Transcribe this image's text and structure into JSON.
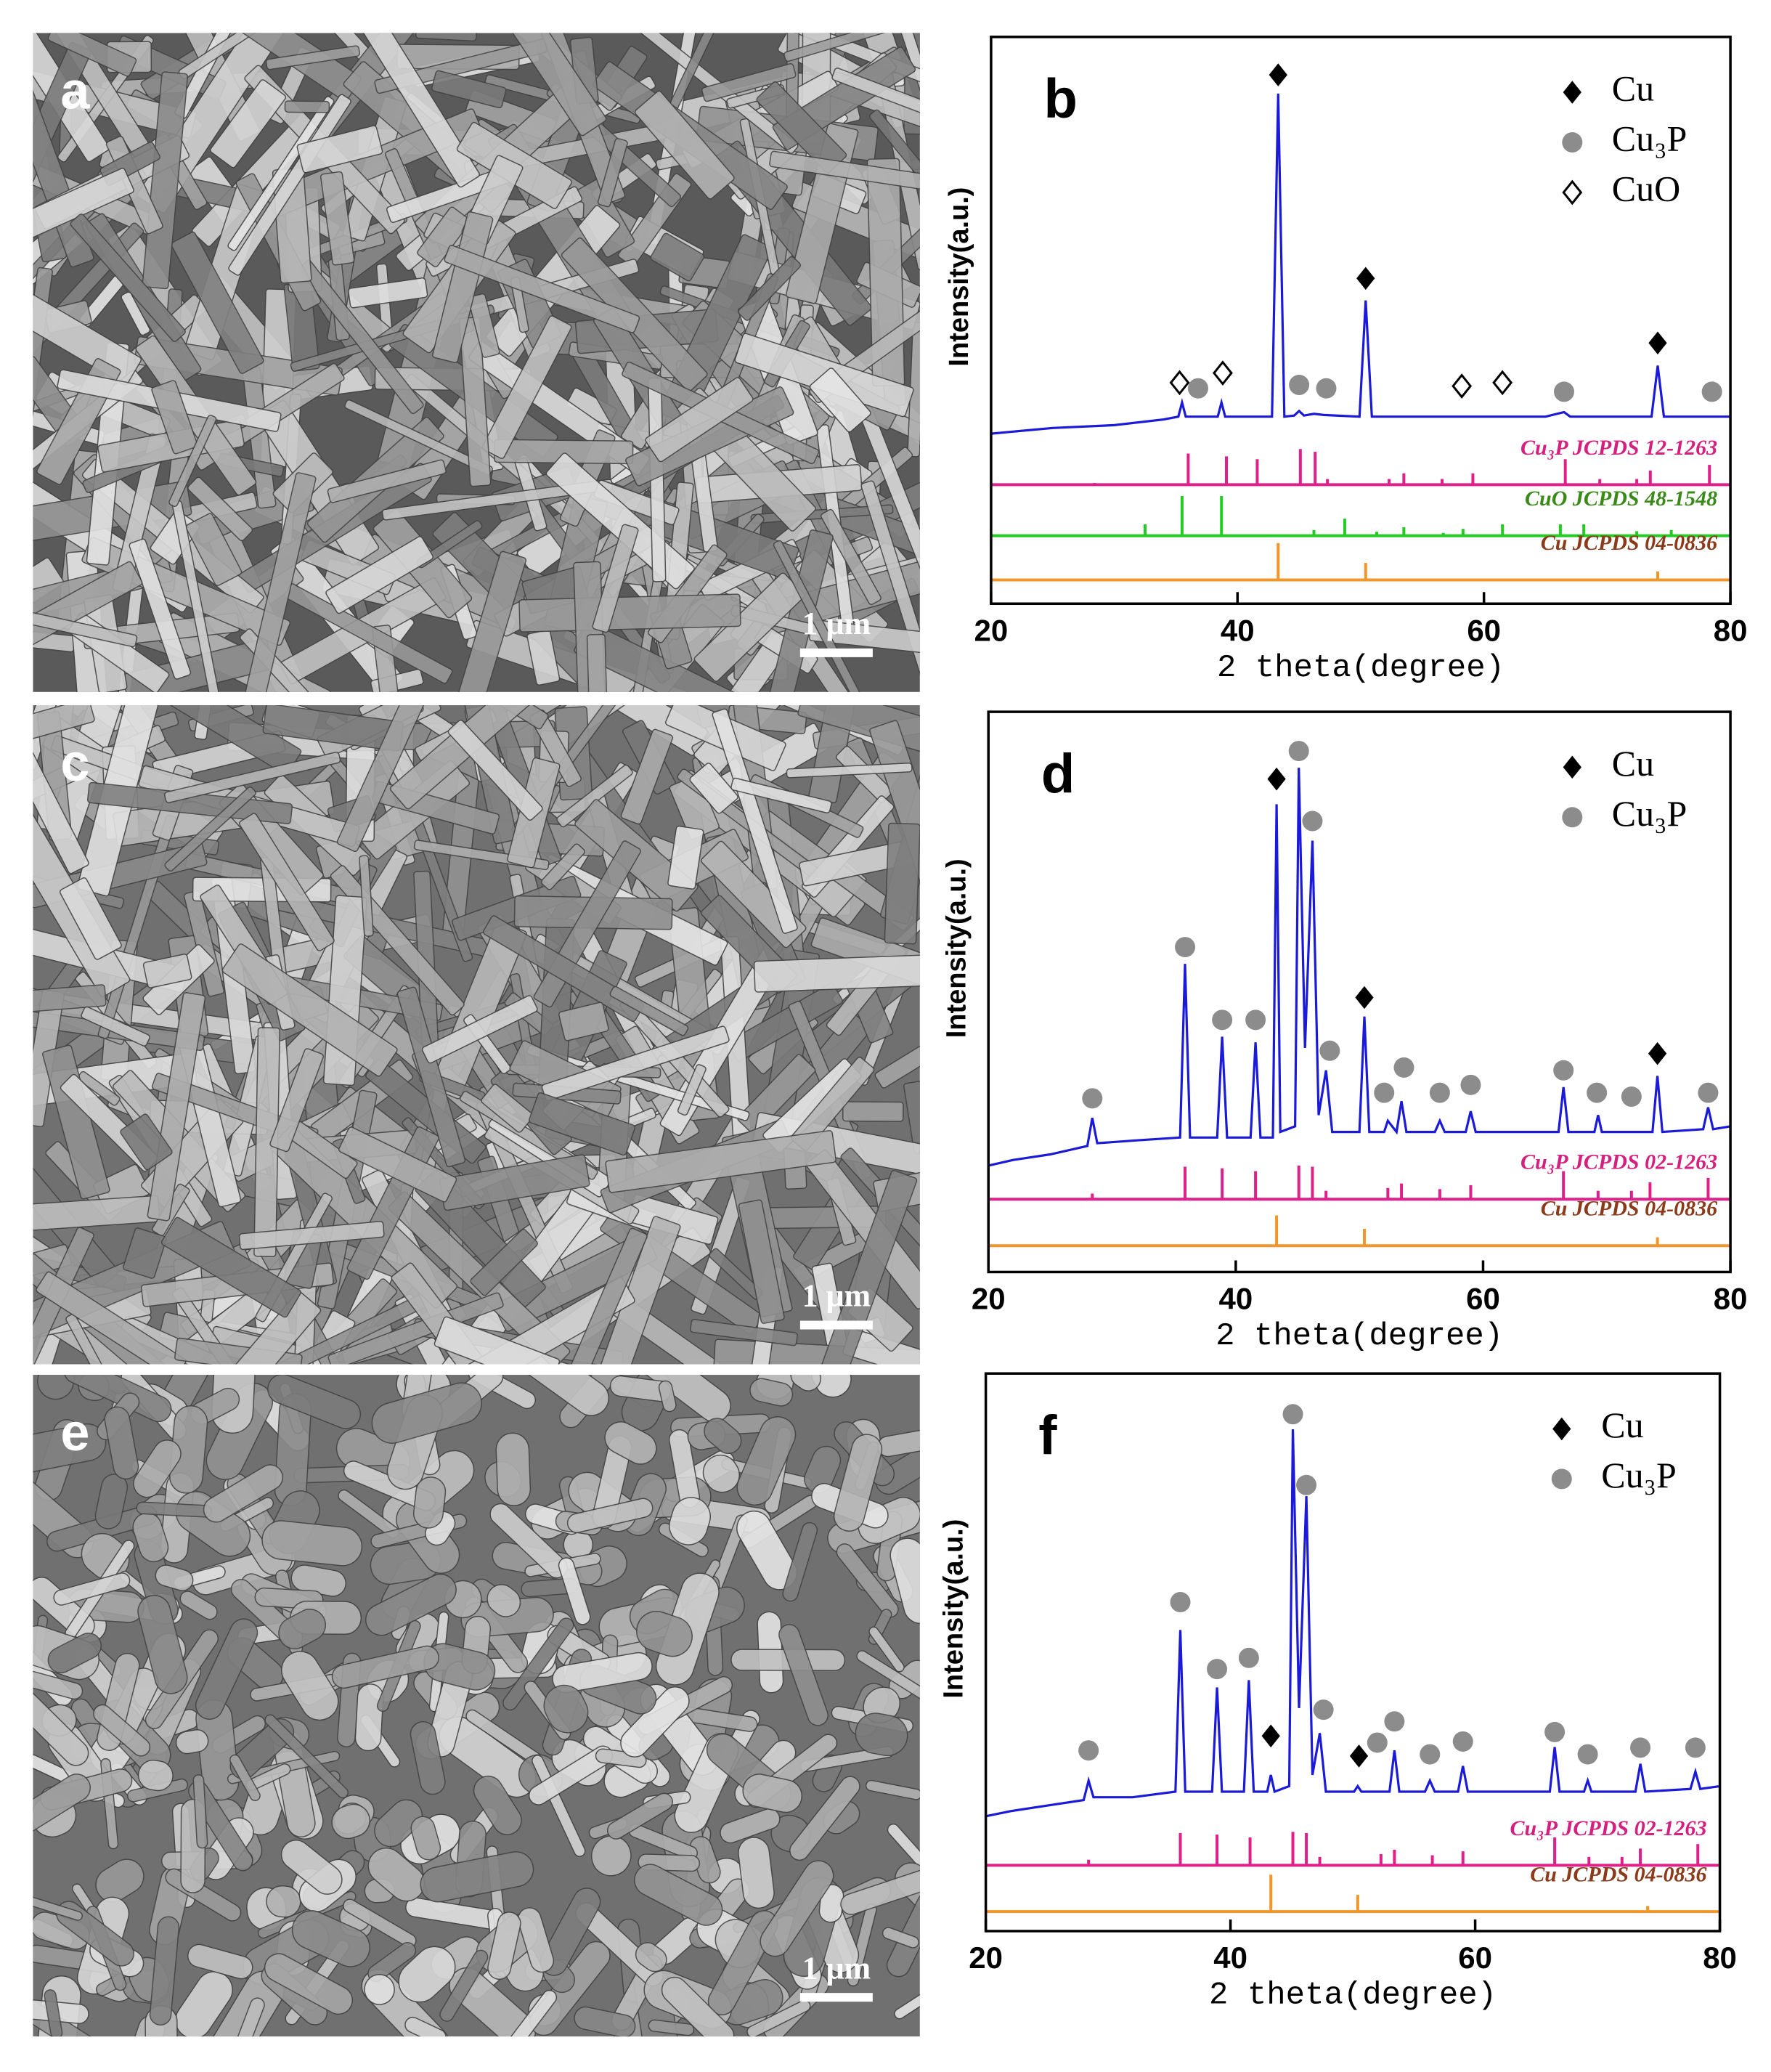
{
  "images": [
    {
      "label": "a",
      "scale_bar": "1 μm"
    },
    {
      "label": "c",
      "scale_bar": "1 μm"
    },
    {
      "label": "e",
      "scale_bar": "1 μm"
    }
  ],
  "chart_data": [
    {
      "type": "line",
      "panel": "b",
      "xlabel": "2 theta(degree)",
      "ylabel": "Intensity(a.u.)",
      "xlim": [
        20,
        80
      ],
      "xticks": [
        20,
        40,
        60,
        80
      ],
      "ylim": [
        0,
        100
      ],
      "series": [
        {
          "color": "#1a1ad8",
          "x": [
            20,
            25,
            30,
            34,
            35.2,
            35.5,
            35.8,
            36.5,
            38.4,
            38.7,
            39.0,
            42.8,
            43.3,
            43.8,
            44.6,
            45,
            45.4,
            46.2,
            47,
            49.9,
            50.4,
            50.9,
            55,
            60,
            65,
            66.5,
            67,
            73.6,
            74.1,
            74.6,
            78,
            80
          ],
          "values": [
            30,
            31,
            31.5,
            32.5,
            33,
            35.5,
            33,
            33,
            33,
            35.5,
            33,
            33,
            90,
            33,
            33.2,
            34,
            33.2,
            33.5,
            33.3,
            33,
            53.5,
            33,
            33,
            33,
            33,
            33.8,
            33,
            33,
            42,
            33,
            33,
            33
          ]
        }
      ],
      "phases": [
        {
          "name": "Cu",
          "symbol": "diamond"
        },
        {
          "name": "Cu₃P",
          "symbol": "circle"
        },
        {
          "name": "CuO",
          "symbol": "open-diamond"
        }
      ],
      "markers": [
        {
          "phase": 0,
          "x": 43.3,
          "y": 93.3
        },
        {
          "phase": 0,
          "x": 50.4,
          "y": 57.4
        },
        {
          "phase": 0,
          "x": 74.1,
          "y": 46
        },
        {
          "phase": 1,
          "x": 36.8,
          "y": 38
        },
        {
          "phase": 1,
          "x": 45,
          "y": 38.6
        },
        {
          "phase": 1,
          "x": 47.2,
          "y": 38
        },
        {
          "phase": 1,
          "x": 66.5,
          "y": 37.4
        },
        {
          "phase": 1,
          "x": 78.5,
          "y": 37.4
        },
        {
          "phase": 2,
          "x": 35.3,
          "y": 39
        },
        {
          "phase": 2,
          "x": 38.8,
          "y": 40.7
        },
        {
          "phase": 2,
          "x": 58.2,
          "y": 38.4
        },
        {
          "phase": 2,
          "x": 61.5,
          "y": 39
        }
      ],
      "references": [
        {
          "name": "Cu₃P JCPDS 12-1263",
          "color": "#e0208a",
          "label_color": "#d4207e",
          "baseline": 21,
          "x": [
            28.4,
            36.0,
            39.1,
            41.6,
            45.1,
            46.3,
            47.3,
            52.3,
            53.5,
            56.6,
            59.1,
            66.6,
            69.4,
            72.4,
            73.5,
            78.3
          ],
          "values": [
            0.3,
            5.5,
            5,
            4.5,
            6.3,
            5.8,
            1,
            1,
            2,
            1,
            2,
            4.5,
            1,
            1,
            2.5,
            3.5
          ]
        },
        {
          "name": "CuO JCPDS 48-1548",
          "color": "#22cc22",
          "label_color": "#3a8a1a",
          "baseline": 12,
          "x": [
            32.5,
            35.5,
            38.7,
            46.2,
            48.7,
            51.3,
            53.5,
            56.7,
            58.3,
            61.5,
            66.2,
            68.1,
            72.4,
            75.2
          ],
          "values": [
            2,
            7,
            7,
            1,
            3,
            0.7,
            1.5,
            0.5,
            1.2,
            2,
            2,
            2,
            0.8,
            1
          ]
        },
        {
          "name": "Cu JCPDS 04-0836",
          "color": "#f0962a",
          "label_color": "#8b3a1a",
          "baseline": 4.2,
          "x": [
            43.3,
            50.4,
            74.1
          ],
          "values": [
            6.5,
            3,
            1.5
          ]
        }
      ]
    },
    {
      "type": "line",
      "panel": "d",
      "xlabel": "2 theta(degree)",
      "ylabel": "Intensity(a.u.)",
      "xlim": [
        20,
        80
      ],
      "xticks": [
        20,
        40,
        60,
        80
      ],
      "ylim": [
        0,
        100
      ],
      "series": [
        {
          "color": "#1a1ad8",
          "x": [
            20,
            22,
            25,
            28,
            28.4,
            28.8,
            32,
            35.5,
            35.9,
            36.3,
            38.5,
            38.9,
            39.3,
            41.2,
            41.6,
            42,
            43,
            43.3,
            43.6,
            44.8,
            45.1,
            45.6,
            46.2,
            46.7,
            47.3,
            47.8,
            50,
            50.4,
            50.8,
            52,
            52.3,
            53,
            53.4,
            53.8,
            56.1,
            56.5,
            56.9,
            58.6,
            59,
            59.4,
            66.1,
            66.5,
            66.9,
            69,
            69.3,
            69.6,
            73.7,
            74.1,
            74.5,
            77.8,
            78.2,
            78.6,
            80
          ],
          "values": [
            19,
            20,
            21,
            22.5,
            27.5,
            23,
            23.5,
            24,
            55,
            24,
            24,
            42,
            24,
            24,
            41,
            24,
            24,
            83.5,
            25,
            26,
            90,
            40,
            77,
            28,
            36,
            25,
            25,
            45.6,
            25,
            25,
            27,
            25,
            30.5,
            25,
            25,
            27,
            25,
            25,
            28.7,
            25,
            25,
            33,
            25,
            25,
            28,
            25,
            25,
            35,
            25,
            25.5,
            29.4,
            25.5,
            26
          ]
        }
      ],
      "phases": [
        {
          "name": "Cu",
          "symbol": "diamond"
        },
        {
          "name": "Cu₃P",
          "symbol": "circle"
        }
      ],
      "markers": [
        {
          "phase": 0,
          "x": 43.3,
          "y": 88
        },
        {
          "phase": 0,
          "x": 50.4,
          "y": 49
        },
        {
          "phase": 0,
          "x": 74.1,
          "y": 39
        },
        {
          "phase": 1,
          "x": 28.4,
          "y": 31
        },
        {
          "phase": 1,
          "x": 35.9,
          "y": 58
        },
        {
          "phase": 1,
          "x": 38.9,
          "y": 45
        },
        {
          "phase": 1,
          "x": 41.6,
          "y": 45
        },
        {
          "phase": 1,
          "x": 45.1,
          "y": 93
        },
        {
          "phase": 1,
          "x": 46.2,
          "y": 80.5
        },
        {
          "phase": 1,
          "x": 47.6,
          "y": 39.5
        },
        {
          "phase": 1,
          "x": 52,
          "y": 32
        },
        {
          "phase": 1,
          "x": 53.6,
          "y": 36.5
        },
        {
          "phase": 1,
          "x": 56.5,
          "y": 32
        },
        {
          "phase": 1,
          "x": 59,
          "y": 33.4
        },
        {
          "phase": 1,
          "x": 66.5,
          "y": 36
        },
        {
          "phase": 1,
          "x": 69.2,
          "y": 32
        },
        {
          "phase": 1,
          "x": 72,
          "y": 31.3
        },
        {
          "phase": 1,
          "x": 78.2,
          "y": 32
        }
      ],
      "references": [
        {
          "name": "Cu₃P JCPDS 02-1263",
          "color": "#e0208a",
          "label_color": "#d4207e",
          "baseline": 13,
          "x": [
            28.4,
            35.9,
            38.9,
            41.6,
            45.1,
            46.2,
            47.3,
            52.3,
            53.4,
            56.5,
            59.0,
            66.5,
            69.3,
            72.0,
            73.5,
            78.2
          ],
          "values": [
            1,
            5.8,
            5.5,
            5,
            6,
            5.8,
            1.5,
            2,
            2.8,
            1.8,
            2.5,
            5,
            1.5,
            1.5,
            3,
            3.8
          ]
        },
        {
          "name": "Cu JCPDS 04-0836",
          "color": "#f0962a",
          "label_color": "#8b3a1a",
          "baseline": 4.7,
          "x": [
            43.3,
            50.4,
            74.1
          ],
          "values": [
            5.4,
            3,
            1.5
          ]
        }
      ]
    },
    {
      "type": "line",
      "panel": "f",
      "xlabel": "2 theta(degree)",
      "ylabel": "Intensity(a.u.)",
      "xlim": [
        20,
        80
      ],
      "xticks": [
        20,
        40,
        60,
        80
      ],
      "ylim": [
        0,
        100
      ],
      "series": [
        {
          "color": "#1a1ad8",
          "x": [
            20,
            22,
            25,
            28,
            28.4,
            28.8,
            32,
            35.5,
            35.9,
            36.3,
            38.5,
            38.9,
            39.3,
            41.1,
            41.5,
            41.9,
            43,
            43.3,
            43.6,
            44.8,
            45.1,
            45.6,
            46.2,
            46.7,
            47.3,
            47.8,
            50.1,
            50.4,
            50.7,
            53,
            53.4,
            53.8,
            55.9,
            56.3,
            56.7,
            58.6,
            59,
            59.4,
            66.1,
            66.5,
            66.9,
            68.9,
            69.2,
            69.5,
            73.1,
            73.5,
            73.9,
            77.6,
            78,
            78.4,
            80
          ],
          "values": [
            20.6,
            21.5,
            22.5,
            23.5,
            27,
            24,
            24,
            25,
            54,
            25,
            25,
            43.7,
            25,
            25,
            45,
            25,
            25,
            28,
            25,
            26,
            90,
            40,
            78,
            28,
            35.5,
            25,
            25,
            26,
            25,
            25,
            32.4,
            25,
            25,
            27,
            25,
            25,
            29.6,
            25,
            25,
            33,
            25,
            25,
            27,
            25,
            25,
            30,
            25,
            25.5,
            28.6,
            25.5,
            26
          ]
        }
      ],
      "phases": [
        {
          "name": "Cu",
          "symbol": "diamond"
        },
        {
          "name": "Cu₃P",
          "symbol": "circle"
        }
      ],
      "markers": [
        {
          "phase": 1,
          "x": 28.4,
          "y": 32.4
        },
        {
          "phase": 1,
          "x": 35.9,
          "y": 59
        },
        {
          "phase": 1,
          "x": 38.9,
          "y": 47
        },
        {
          "phase": 1,
          "x": 41.5,
          "y": 49
        },
        {
          "phase": 1,
          "x": 45.1,
          "y": 92.7
        },
        {
          "phase": 1,
          "x": 46.2,
          "y": 80
        },
        {
          "phase": 1,
          "x": 47.6,
          "y": 39.7
        },
        {
          "phase": 1,
          "x": 52,
          "y": 33.8
        },
        {
          "phase": 1,
          "x": 53.4,
          "y": 37.6
        },
        {
          "phase": 1,
          "x": 56.3,
          "y": 31.7
        },
        {
          "phase": 1,
          "x": 59,
          "y": 34
        },
        {
          "phase": 1,
          "x": 66.5,
          "y": 35.7
        },
        {
          "phase": 1,
          "x": 69.2,
          "y": 31.7
        },
        {
          "phase": 1,
          "x": 73.5,
          "y": 32.9
        },
        {
          "phase": 1,
          "x": 78,
          "y": 32.9
        },
        {
          "phase": 0,
          "x": 43.3,
          "y": 35
        },
        {
          "phase": 0,
          "x": 50.5,
          "y": 31.4
        }
      ],
      "references": [
        {
          "name": "Cu₃P JCPDS 02-1263",
          "color": "#e0208a",
          "label_color": "#d4207e",
          "baseline": 11.8,
          "x": [
            28.4,
            35.9,
            38.9,
            41.6,
            45.1,
            46.2,
            47.3,
            52.3,
            53.4,
            56.5,
            59.0,
            66.5,
            69.3,
            72.0,
            73.5,
            78.2
          ],
          "values": [
            1,
            5.8,
            5.5,
            5,
            6,
            5.8,
            1.5,
            2,
            2.8,
            1.8,
            2.5,
            5,
            1.5,
            1.5,
            3,
            3.8
          ]
        },
        {
          "name": "Cu JCPDS 04-0836",
          "color": "#f0962a",
          "label_color": "#8b3a1a",
          "baseline": 3.5,
          "x": [
            43.3,
            50.4,
            74.1
          ],
          "values": [
            6.6,
            3,
            1
          ]
        }
      ]
    }
  ]
}
